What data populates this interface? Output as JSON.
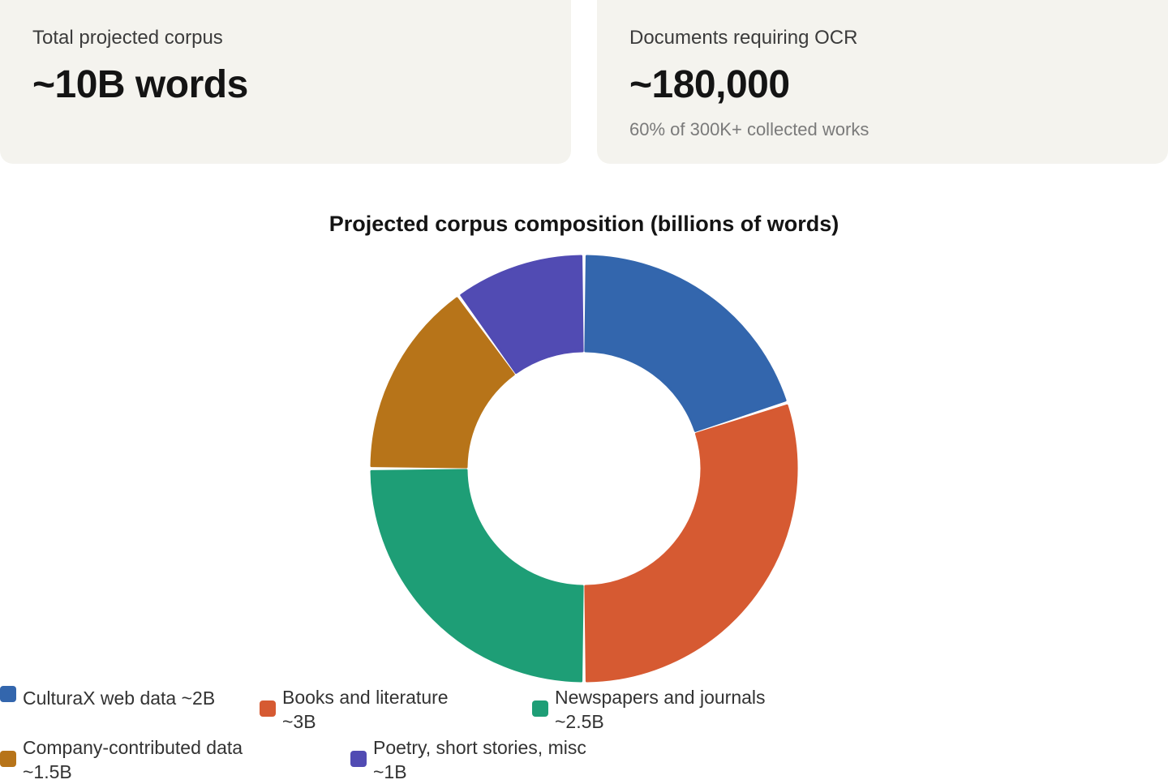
{
  "cards": [
    {
      "label": "Total projected corpus",
      "value": "~10B words",
      "sub": ""
    },
    {
      "label": "Documents requiring OCR",
      "value": "~180,000",
      "sub": "60% of 300K+ collected works"
    }
  ],
  "chart_data": {
    "type": "pie",
    "title": "Projected corpus composition (billions of words)",
    "categories": [
      "CulturaX web data",
      "Books and literature",
      "Newspapers and journals",
      "Company-contributed data",
      "Poetry, short stories, misc"
    ],
    "values": [
      2,
      3,
      2.5,
      1.5,
      1
    ],
    "colors": [
      "#3366ad",
      "#d65a32",
      "#1e9e76",
      "#b77419",
      "#514bb3"
    ],
    "donut": true,
    "legend_position": "bottom-left",
    "legend_entries": [
      {
        "line1": "CulturaX web data ~2B",
        "line2": ""
      },
      {
        "line1": "Books and literature",
        "line2": "~3B"
      },
      {
        "line1": "Newspapers and journals",
        "line2": "~2.5B"
      },
      {
        "line1": "Company-contributed data",
        "line2": "~1.5B"
      },
      {
        "line1": "Poetry, short stories, misc",
        "line2": "~1B"
      }
    ]
  }
}
